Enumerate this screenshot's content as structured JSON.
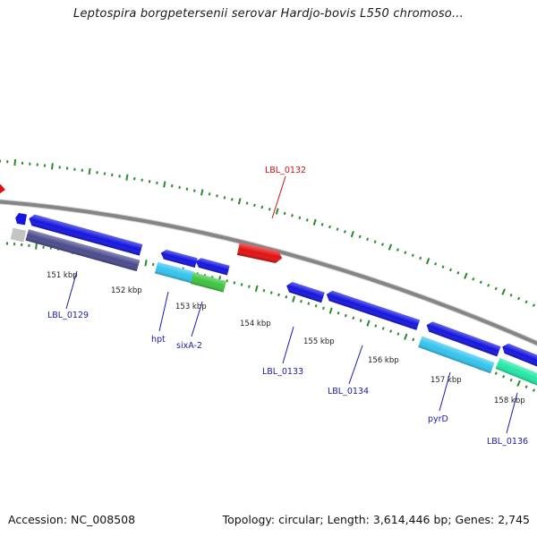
{
  "title": "Leptospira borgpetersenii serovar Hardjo-bovis L550 chromoso...",
  "footer": {
    "accession": "Accession: NC_008508",
    "topology": "Topology: circular; Length: 3,614,446 bp; Genes: 2,745"
  },
  "colors": {
    "backbone": "#8a8a8a",
    "gene_blue": "#1515e0",
    "gene_red": "#e21111",
    "gene_navy": "#4a4a8e",
    "gene_cyan": "#33c4ee",
    "gene_green": "#3ec43e",
    "gene_teal": "#22e8a6",
    "gene_gray": "#c4c4c4",
    "tick_green": "#2a8a2a",
    "label_blue": "#1a1aa8",
    "label_red": "#cc1111"
  },
  "scale_labels": [
    "151 kbp",
    "152 kbp",
    "153 kbp",
    "154 kbp",
    "155 kbp",
    "156 kbp",
    "157 kbp",
    "158 kbp"
  ],
  "gene_labels": [
    "LBL_0129",
    "hpt",
    "sixA-2",
    "LBL_0133",
    "LBL_0134",
    "pyrD",
    "LBL_0136",
    "LBL_0132"
  ]
}
